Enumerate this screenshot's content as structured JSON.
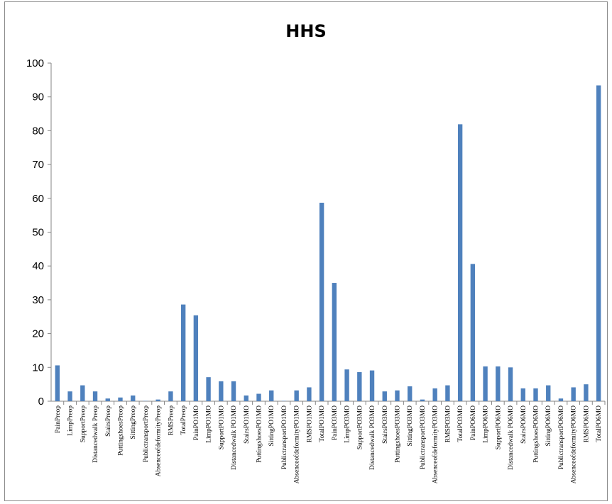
{
  "chart_data": {
    "type": "bar",
    "title": "HHS",
    "xlabel": "",
    "ylabel": "",
    "ylim": [
      0,
      100
    ],
    "yticks": [
      "0",
      "10",
      "20",
      "30",
      "40",
      "50",
      "60",
      "70",
      "80",
      "90",
      "100"
    ],
    "grid": false,
    "legend": "none",
    "bar_color": "#4f81bd",
    "categories": [
      "PainPreop",
      "LimpPreop",
      "SupportPreop",
      "Distancedwalk Preop",
      "StairsPreop",
      "PuttingshoesPreop",
      "SittingPreop",
      "PublictransportPreop",
      "AbsenceofdeformityPreop",
      "RMSPreop",
      "TotalPreop",
      "PainPO1MO",
      "LimpPO1MO",
      "SupportPO1MO",
      "Distancedwalk PO1MO",
      "StairsPO1MO",
      "PuttingshoesPO1MO",
      "SittingPO1MO",
      "PublictransportPO1MO",
      "AbsenceofdeformityPO1MO",
      "RMSPO1MO",
      "TotalPO1MO",
      "PainPO3MO",
      "LimpPO3MO",
      "SupportPO3MO",
      "Distancedwalk PO3MO",
      "StairsPO3MO",
      "PuttingshoesPO3MO",
      "SittingPO3MO",
      "PublictransportPO3MO",
      "AbsenceofdeformityPO3MO",
      "RMSPO3MO",
      "TotalPO3MO",
      "PainPO6MO",
      "LimpPO6MO",
      "SupportPO6MO",
      "Distancedwalk PO6MO",
      "StairsPO6MO",
      "PuttingshoesPO6MO",
      "SittingPO6MO",
      "PublictransportPO6MO",
      "AbsenceofdeformityPO6MO",
      "RMSPO6MO",
      "TotalPO6MO"
    ],
    "values": [
      10.6,
      2.9,
      4.7,
      2.9,
      0.8,
      1.1,
      1.7,
      0.1,
      0.5,
      2.9,
      28.6,
      25.4,
      7.1,
      5.9,
      5.9,
      1.7,
      2.2,
      3.2,
      0.1,
      3.2,
      4.1,
      58.7,
      35.0,
      9.4,
      8.6,
      9.1,
      2.9,
      3.2,
      4.4,
      0.5,
      3.8,
      4.7,
      81.9,
      40.6,
      10.3,
      10.3,
      10.0,
      3.8,
      3.8,
      4.7,
      0.8,
      4.1,
      5.0,
      93.4
    ]
  }
}
